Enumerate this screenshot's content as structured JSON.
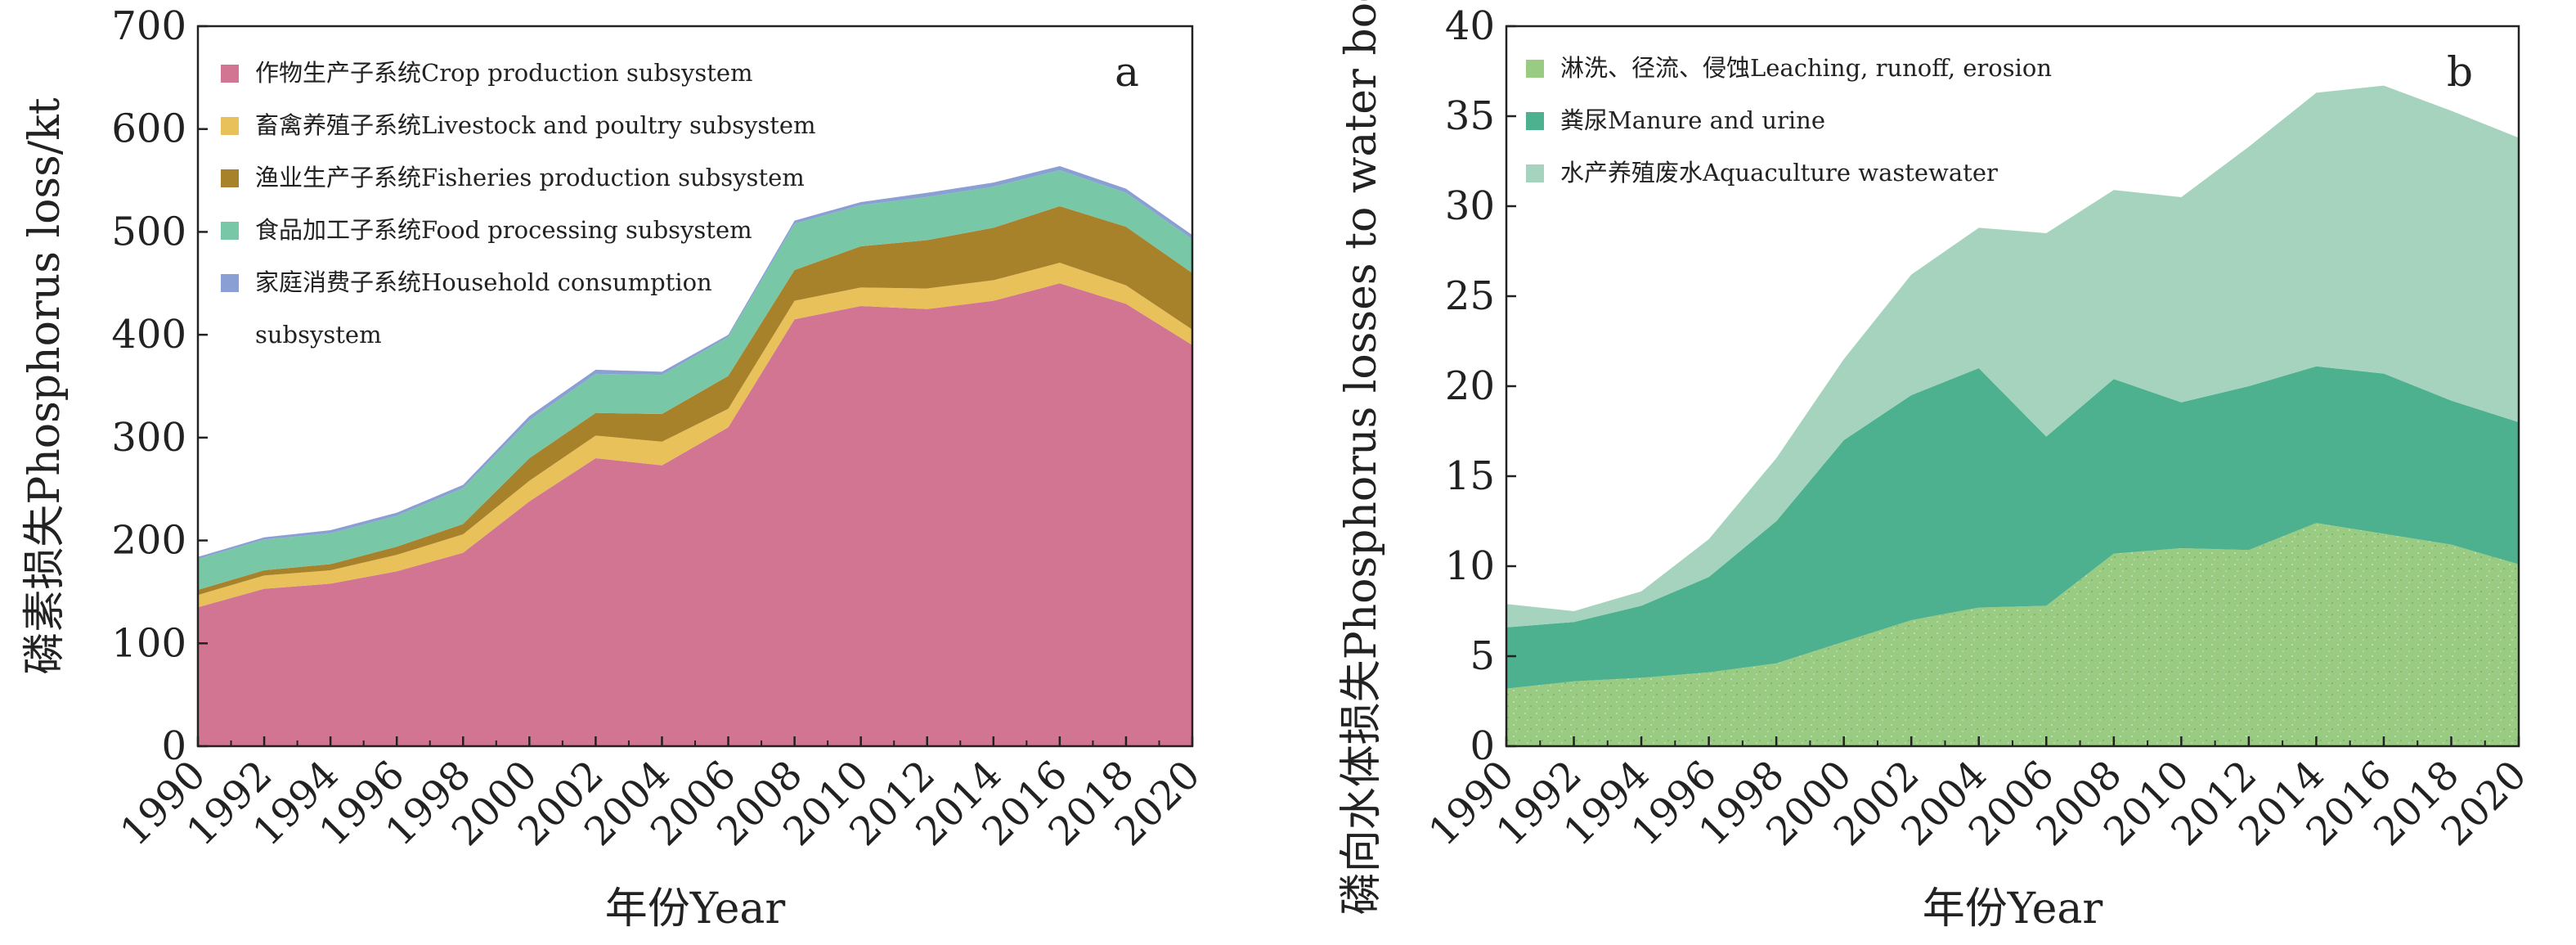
{
  "chart_data": [
    {
      "type": "area",
      "stacked": true,
      "panel_label": "a",
      "title": "",
      "xlabel": "年份Year",
      "ylabel": "磷素损失Phosphorus loss/kt",
      "xlim": [
        1990,
        2020
      ],
      "ylim": [
        0,
        700
      ],
      "x_ticks": [
        "1990",
        "1992",
        "1994",
        "1996",
        "1998",
        "2000",
        "2002",
        "2004",
        "2006",
        "2008",
        "2010",
        "2012",
        "2014",
        "2016",
        "2018",
        "2020"
      ],
      "y_ticks": [
        "0",
        "100",
        "200",
        "300",
        "400",
        "500",
        "600",
        "700"
      ],
      "grid": false,
      "legend_position": "top-left",
      "x": [
        1990,
        1992,
        1994,
        1996,
        1998,
        2000,
        2002,
        2004,
        2006,
        2008,
        2010,
        2012,
        2014,
        2016,
        2018,
        2020
      ],
      "series": [
        {
          "name": "作物生产子系统Crop production subsystem",
          "color": "#d17592",
          "values": [
            135,
            153,
            158,
            170,
            188,
            238,
            280,
            273,
            310,
            415,
            428,
            425,
            433,
            450,
            430,
            390
          ]
        },
        {
          "name": "畜禽养殖子系统Livestock and poultry subsystem",
          "color": "#e9c15a",
          "values": [
            12,
            13,
            13,
            16,
            18,
            20,
            22,
            23,
            18,
            18,
            18,
            20,
            20,
            20,
            18,
            15
          ]
        },
        {
          "name": "渔业生产子系统Fisheries production subsystem",
          "color": "#a8822a",
          "values": [
            5,
            5,
            6,
            8,
            10,
            22,
            22,
            27,
            32,
            30,
            40,
            47,
            51,
            55,
            57,
            55
          ]
        },
        {
          "name": "食品加工子系统Food processing subsystem",
          "color": "#78c8a8",
          "values": [
            30,
            30,
            30,
            30,
            35,
            37,
            38,
            38,
            38,
            45,
            40,
            42,
            40,
            35,
            33,
            33
          ]
        },
        {
          "name": "家庭消费子系统Household consumption subsystem",
          "color": "#8a9fd3",
          "values": [
            2,
            2,
            3,
            3,
            3,
            4,
            4,
            3,
            2,
            3,
            3,
            4,
            4,
            4,
            4,
            4
          ]
        }
      ]
    },
    {
      "type": "area",
      "stacked": true,
      "panel_label": "b",
      "title": "",
      "xlabel": "年份Year",
      "ylabel": "磷向水体损失Phosphorus losses to water bodies/kt",
      "xlim": [
        1990,
        2020
      ],
      "ylim": [
        0,
        40
      ],
      "x_ticks": [
        "1990",
        "1992",
        "1994",
        "1996",
        "1998",
        "2000",
        "2002",
        "2004",
        "2006",
        "2008",
        "2010",
        "2012",
        "2014",
        "2016",
        "2018",
        "2020"
      ],
      "y_ticks": [
        "0",
        "5",
        "10",
        "15",
        "20",
        "25",
        "30",
        "35",
        "40"
      ],
      "grid": false,
      "legend_position": "top-left",
      "x": [
        1990,
        1992,
        1994,
        1996,
        1998,
        2000,
        2002,
        2004,
        2006,
        2008,
        2010,
        2012,
        2014,
        2016,
        2018,
        2020
      ],
      "series": [
        {
          "name": "淋洗、径流、侵蚀Leaching, runoff, erosion",
          "color": "#9acb82",
          "values": [
            3.2,
            3.6,
            3.8,
            4.1,
            4.6,
            5.8,
            7.0,
            7.7,
            7.8,
            10.7,
            11.0,
            10.9,
            12.4,
            11.8,
            11.2,
            10.1
          ]
        },
        {
          "name": "粪尿Manure and urine",
          "color": "#4db08f",
          "values": [
            3.4,
            3.3,
            4.0,
            5.3,
            7.9,
            11.2,
            12.5,
            13.3,
            9.4,
            9.7,
            8.1,
            9.1,
            8.7,
            8.9,
            8.0,
            7.9
          ]
        },
        {
          "name": "水产养殖废水Aquaculture wastewater",
          "color": "#a6d3be",
          "values": [
            1.3,
            0.6,
            0.8,
            2.1,
            3.5,
            4.5,
            6.7,
            7.8,
            11.3,
            10.5,
            11.4,
            13.3,
            15.2,
            16.0,
            16.1,
            15.8
          ]
        }
      ]
    }
  ]
}
